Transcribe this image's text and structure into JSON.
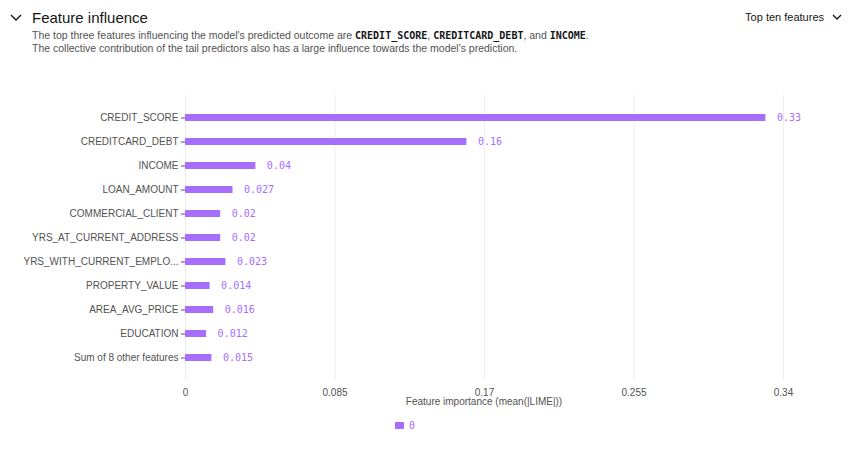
{
  "chart_data": {
    "type": "bar",
    "title": "Feature influence",
    "subtitle": [
      "The top three features influencing the model's predicted outcome are CREDIT_SCORE, CREDITCARD_DEBT, and INCOME.",
      "The collective contribution of the tail predictors also has a large influence towards the model's prediction."
    ],
    "control_label": "Top ten features",
    "orientation": "horizontal",
    "categories": [
      "CREDIT_SCORE",
      "CREDITCARD_DEBT",
      "INCOME",
      "LOAN_AMOUNT",
      "COMMERCIAL_CLIENT",
      "YRS_AT_CURRENT_ADDRESS",
      "YRS_WITH_CURRENT_EMPLO...",
      "PROPERTY_VALUE",
      "AREA_AVG_PRICE",
      "EDUCATION",
      "Sum of 8 other features"
    ],
    "series": [
      {
        "name": "0",
        "color": "#a56eff",
        "values": [
          0.33,
          0.16,
          0.04,
          0.027,
          0.02,
          0.02,
          0.023,
          0.014,
          0.016,
          0.012,
          0.015
        ]
      }
    ],
    "xlim": [
      0,
      0.34
    ],
    "xticks": [
      0,
      0.085,
      0.17,
      0.255,
      0.34
    ],
    "xlabel": "Feature importance (mean(|LIME|))",
    "grid": true,
    "data_labels": true,
    "legend": "bottom"
  }
}
